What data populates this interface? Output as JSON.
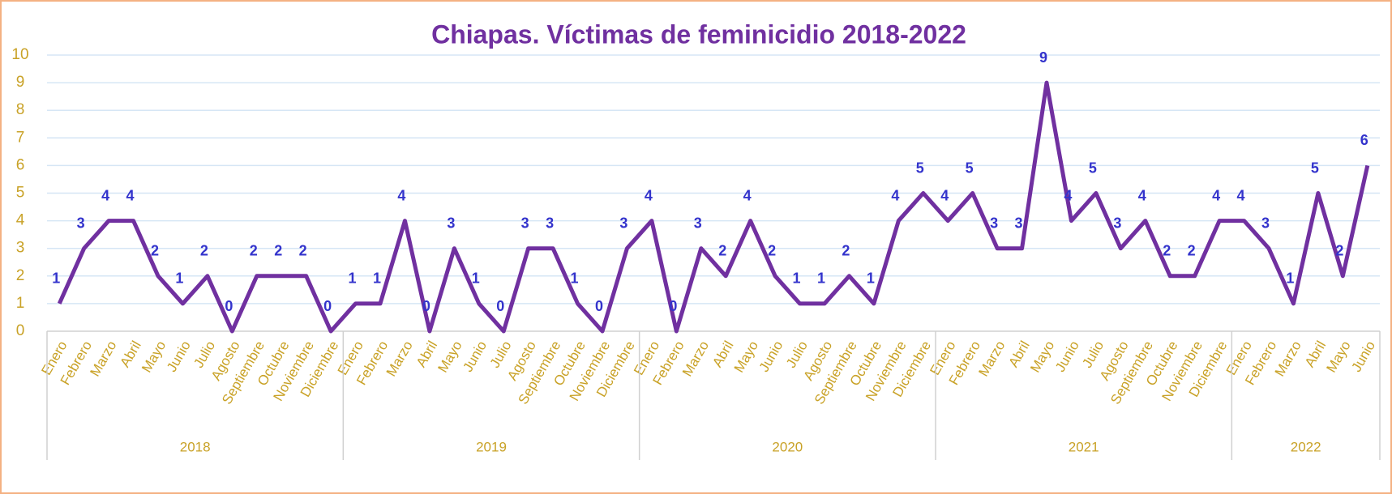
{
  "chart_data": {
    "type": "line",
    "title": "Chiapas. Víctimas de feminicidio 2018-2022",
    "groups": [
      {
        "label": "2018",
        "categories": [
          "Enero",
          "Febrero",
          "Marzo",
          "Abril",
          "Mayo",
          "Junio",
          "Julio",
          "Agosto",
          "Septiembre",
          "Octubre",
          "Noviembre",
          "Diciembre"
        ]
      },
      {
        "label": "2019",
        "categories": [
          "Enero",
          "Febrero",
          "Marzo",
          "Abril",
          "Mayo",
          "Junio",
          "Julio",
          "Agosto",
          "Septiembre",
          "Octubre",
          "Noviembre",
          "Diciembre"
        ]
      },
      {
        "label": "2020",
        "categories": [
          "Enero",
          "Febrero",
          "Marzo",
          "Abril",
          "Mayo",
          "Junio",
          "Julio",
          "Agosto",
          "Septiembre",
          "Octubre",
          "Noviembre",
          "Diciembre"
        ]
      },
      {
        "label": "2021",
        "categories": [
          "Enero",
          "Febrero",
          "Marzo",
          "Abril",
          "Mayo",
          "Junio",
          "Julio",
          "Agosto",
          "Septiembre",
          "Octubre",
          "Noviembre",
          "Diciembre"
        ]
      },
      {
        "label": "2022",
        "categories": [
          "Enero",
          "Febrero",
          "Marzo",
          "Abril",
          "Mayo",
          "Junio"
        ]
      }
    ],
    "values": [
      1,
      3,
      4,
      4,
      2,
      1,
      2,
      0,
      2,
      2,
      2,
      0,
      1,
      1,
      4,
      0,
      3,
      1,
      0,
      3,
      3,
      1,
      0,
      3,
      4,
      0,
      3,
      2,
      4,
      2,
      1,
      1,
      2,
      1,
      4,
      5,
      4,
      5,
      3,
      3,
      9,
      4,
      5,
      3,
      4,
      2,
      2,
      4,
      4,
      3,
      1,
      5,
      2,
      6
    ],
    "color": "#7030a0",
    "ylim": [
      0,
      10
    ],
    "yticks": [
      0,
      1,
      2,
      3,
      4,
      5,
      6,
      7,
      8,
      9,
      10
    ],
    "grid": true
  }
}
